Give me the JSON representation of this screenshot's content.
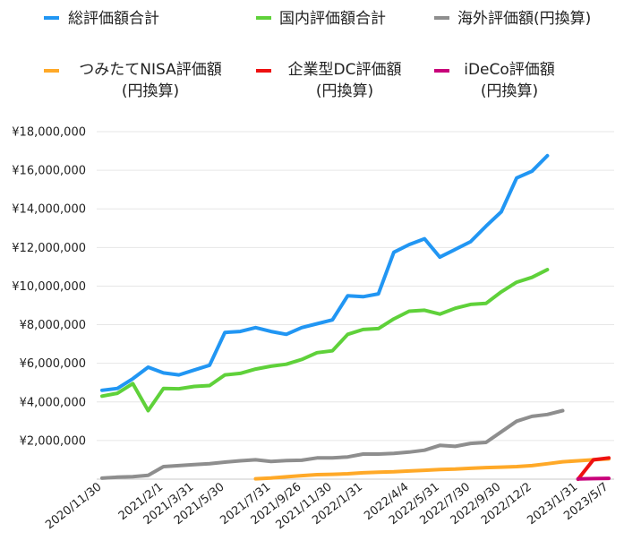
{
  "chart_data": {
    "type": "line",
    "title": "",
    "xlabel": "",
    "ylabel": "",
    "ylim": [
      0,
      18000000
    ],
    "y_ticks": [
      {
        "value": 0,
        "label": ""
      },
      {
        "value": 2000000,
        "label": "¥2,000,000"
      },
      {
        "value": 4000000,
        "label": "¥4,000,000"
      },
      {
        "value": 6000000,
        "label": "¥6,000,000"
      },
      {
        "value": 8000000,
        "label": "¥8,000,000"
      },
      {
        "value": 10000000,
        "label": "¥10,000,000"
      },
      {
        "value": 12000000,
        "label": "¥12,000,000"
      },
      {
        "value": 14000000,
        "label": "¥14,000,000"
      },
      {
        "value": 16000000,
        "label": "¥16,000,000"
      },
      {
        "value": 18000000,
        "label": "¥18,000,000"
      }
    ],
    "grid": true,
    "legend_position": "top",
    "x": [
      "2020/11/30",
      "2020/12/31",
      "2021/1/15",
      "2021/1/29",
      "2021/2/1",
      "2021/2/26",
      "2021/3/31",
      "2021/4/30",
      "2021/5/30",
      "2021/6/30",
      "2021/7/15",
      "2021/7/31",
      "2021/8/31",
      "2021/9/26",
      "2021/10/29",
      "2021/11/30",
      "2021/12/31",
      "2022/1/31",
      "2022/2/28",
      "2022/3/15",
      "2022/4/4",
      "2022/4/29",
      "2022/5/31",
      "2022/6/30",
      "2022/7/30",
      "2022/8/31",
      "2022/9/30",
      "2022/10/31",
      "2022/12/2",
      "2022/12/15",
      "2022/12/31",
      "2023/1/31",
      "2023/3/31",
      "2023/5/7"
    ],
    "x_tick_labels": [
      {
        "index": 0,
        "label": "2020/11/30"
      },
      {
        "index": 4,
        "label": "2021/2/1"
      },
      {
        "index": 6,
        "label": "2021/3/31"
      },
      {
        "index": 8,
        "label": "2021/5/30"
      },
      {
        "index": 11,
        "label": "2021/7/31"
      },
      {
        "index": 13,
        "label": "2021/9/26"
      },
      {
        "index": 15,
        "label": "2021/11/30"
      },
      {
        "index": 17,
        "label": "2022/1/31"
      },
      {
        "index": 20,
        "label": "2022/4/4"
      },
      {
        "index": 22,
        "label": "2022/5/31"
      },
      {
        "index": 24,
        "label": "2022/7/30"
      },
      {
        "index": 26,
        "label": "2022/9/30"
      },
      {
        "index": 28,
        "label": "2022/12/2"
      },
      {
        "index": 31,
        "label": "2023/1/31"
      },
      {
        "index": 33,
        "label": "2023/5/7"
      }
    ],
    "series": [
      {
        "name": "総評価額合計",
        "color": "#2196f3",
        "values": [
          4600000,
          4700000,
          5200000,
          5800000,
          5500000,
          5400000,
          5650000,
          5900000,
          7600000,
          7650000,
          7850000,
          7650000,
          7500000,
          7850000,
          8050000,
          8250000,
          9500000,
          9450000,
          9600000,
          11750000,
          12150000,
          12450000,
          11500000,
          11900000,
          12300000,
          13100000,
          13850000,
          15600000,
          15950000,
          16750000,
          null,
          null,
          null,
          null
        ]
      },
      {
        "name": "国内評価額合計",
        "color": "#5fd13a",
        "values": [
          4300000,
          4450000,
          4950000,
          3550000,
          4700000,
          4680000,
          4800000,
          4850000,
          5400000,
          5480000,
          5700000,
          5850000,
          5950000,
          6200000,
          6550000,
          6650000,
          7500000,
          7750000,
          7800000,
          8300000,
          8700000,
          8750000,
          8550000,
          8850000,
          9050000,
          9100000,
          9700000,
          10200000,
          10450000,
          10850000,
          null,
          null,
          null,
          null
        ]
      },
      {
        "name": "海外評価額(円換算)",
        "color": "#8e8e8e",
        "values": [
          50000,
          100000,
          130000,
          200000,
          650000,
          700000,
          750000,
          800000,
          880000,
          950000,
          1000000,
          920000,
          960000,
          980000,
          1100000,
          1100000,
          1150000,
          1300000,
          1300000,
          1330000,
          1400000,
          1500000,
          1750000,
          1700000,
          1850000,
          1900000,
          2450000,
          3000000,
          3250000,
          3350000,
          3550000,
          null,
          null,
          null
        ]
      },
      {
        "name": "つみたてNISA評価額\n(円換算)",
        "color": "#ffa928",
        "values": [
          null,
          null,
          null,
          null,
          null,
          null,
          null,
          null,
          null,
          null,
          20000,
          60000,
          120000,
          180000,
          230000,
          250000,
          280000,
          330000,
          360000,
          380000,
          420000,
          460000,
          500000,
          520000,
          560000,
          600000,
          620000,
          650000,
          700000,
          800000,
          900000,
          950000,
          1000000,
          1050000
        ]
      },
      {
        "name": "企業型DC評価額\n(円換算)",
        "color": "#ee1111",
        "values": [
          null,
          null,
          null,
          null,
          null,
          null,
          null,
          null,
          null,
          null,
          null,
          null,
          null,
          null,
          null,
          null,
          null,
          null,
          null,
          null,
          null,
          null,
          null,
          null,
          null,
          null,
          null,
          null,
          null,
          null,
          null,
          0,
          1000000,
          1100000
        ]
      },
      {
        "name": "iDeCo評価額\n(円換算)",
        "color": "#c8007a",
        "values": [
          null,
          null,
          null,
          null,
          null,
          null,
          null,
          null,
          null,
          null,
          null,
          null,
          null,
          null,
          null,
          null,
          null,
          null,
          null,
          null,
          null,
          null,
          null,
          null,
          null,
          null,
          null,
          null,
          null,
          null,
          null,
          10000,
          30000,
          40000
        ]
      }
    ],
    "legend": [
      {
        "label": "総評価額合計",
        "color": "#2196f3"
      },
      {
        "label": "国内評価額合計",
        "color": "#5fd13a"
      },
      {
        "label": "海外評価額(円換算)",
        "color": "#8e8e8e"
      },
      {
        "label_line1": "つみたてNISA評価額",
        "label_line2": "(円換算)",
        "color": "#ffa928"
      },
      {
        "label_line1": "企業型DC評価額",
        "label_line2": "(円換算)",
        "color": "#ee1111"
      },
      {
        "label_line1": "iDeCo評価額",
        "label_line2": "(円換算)",
        "color": "#c8007a"
      }
    ]
  }
}
